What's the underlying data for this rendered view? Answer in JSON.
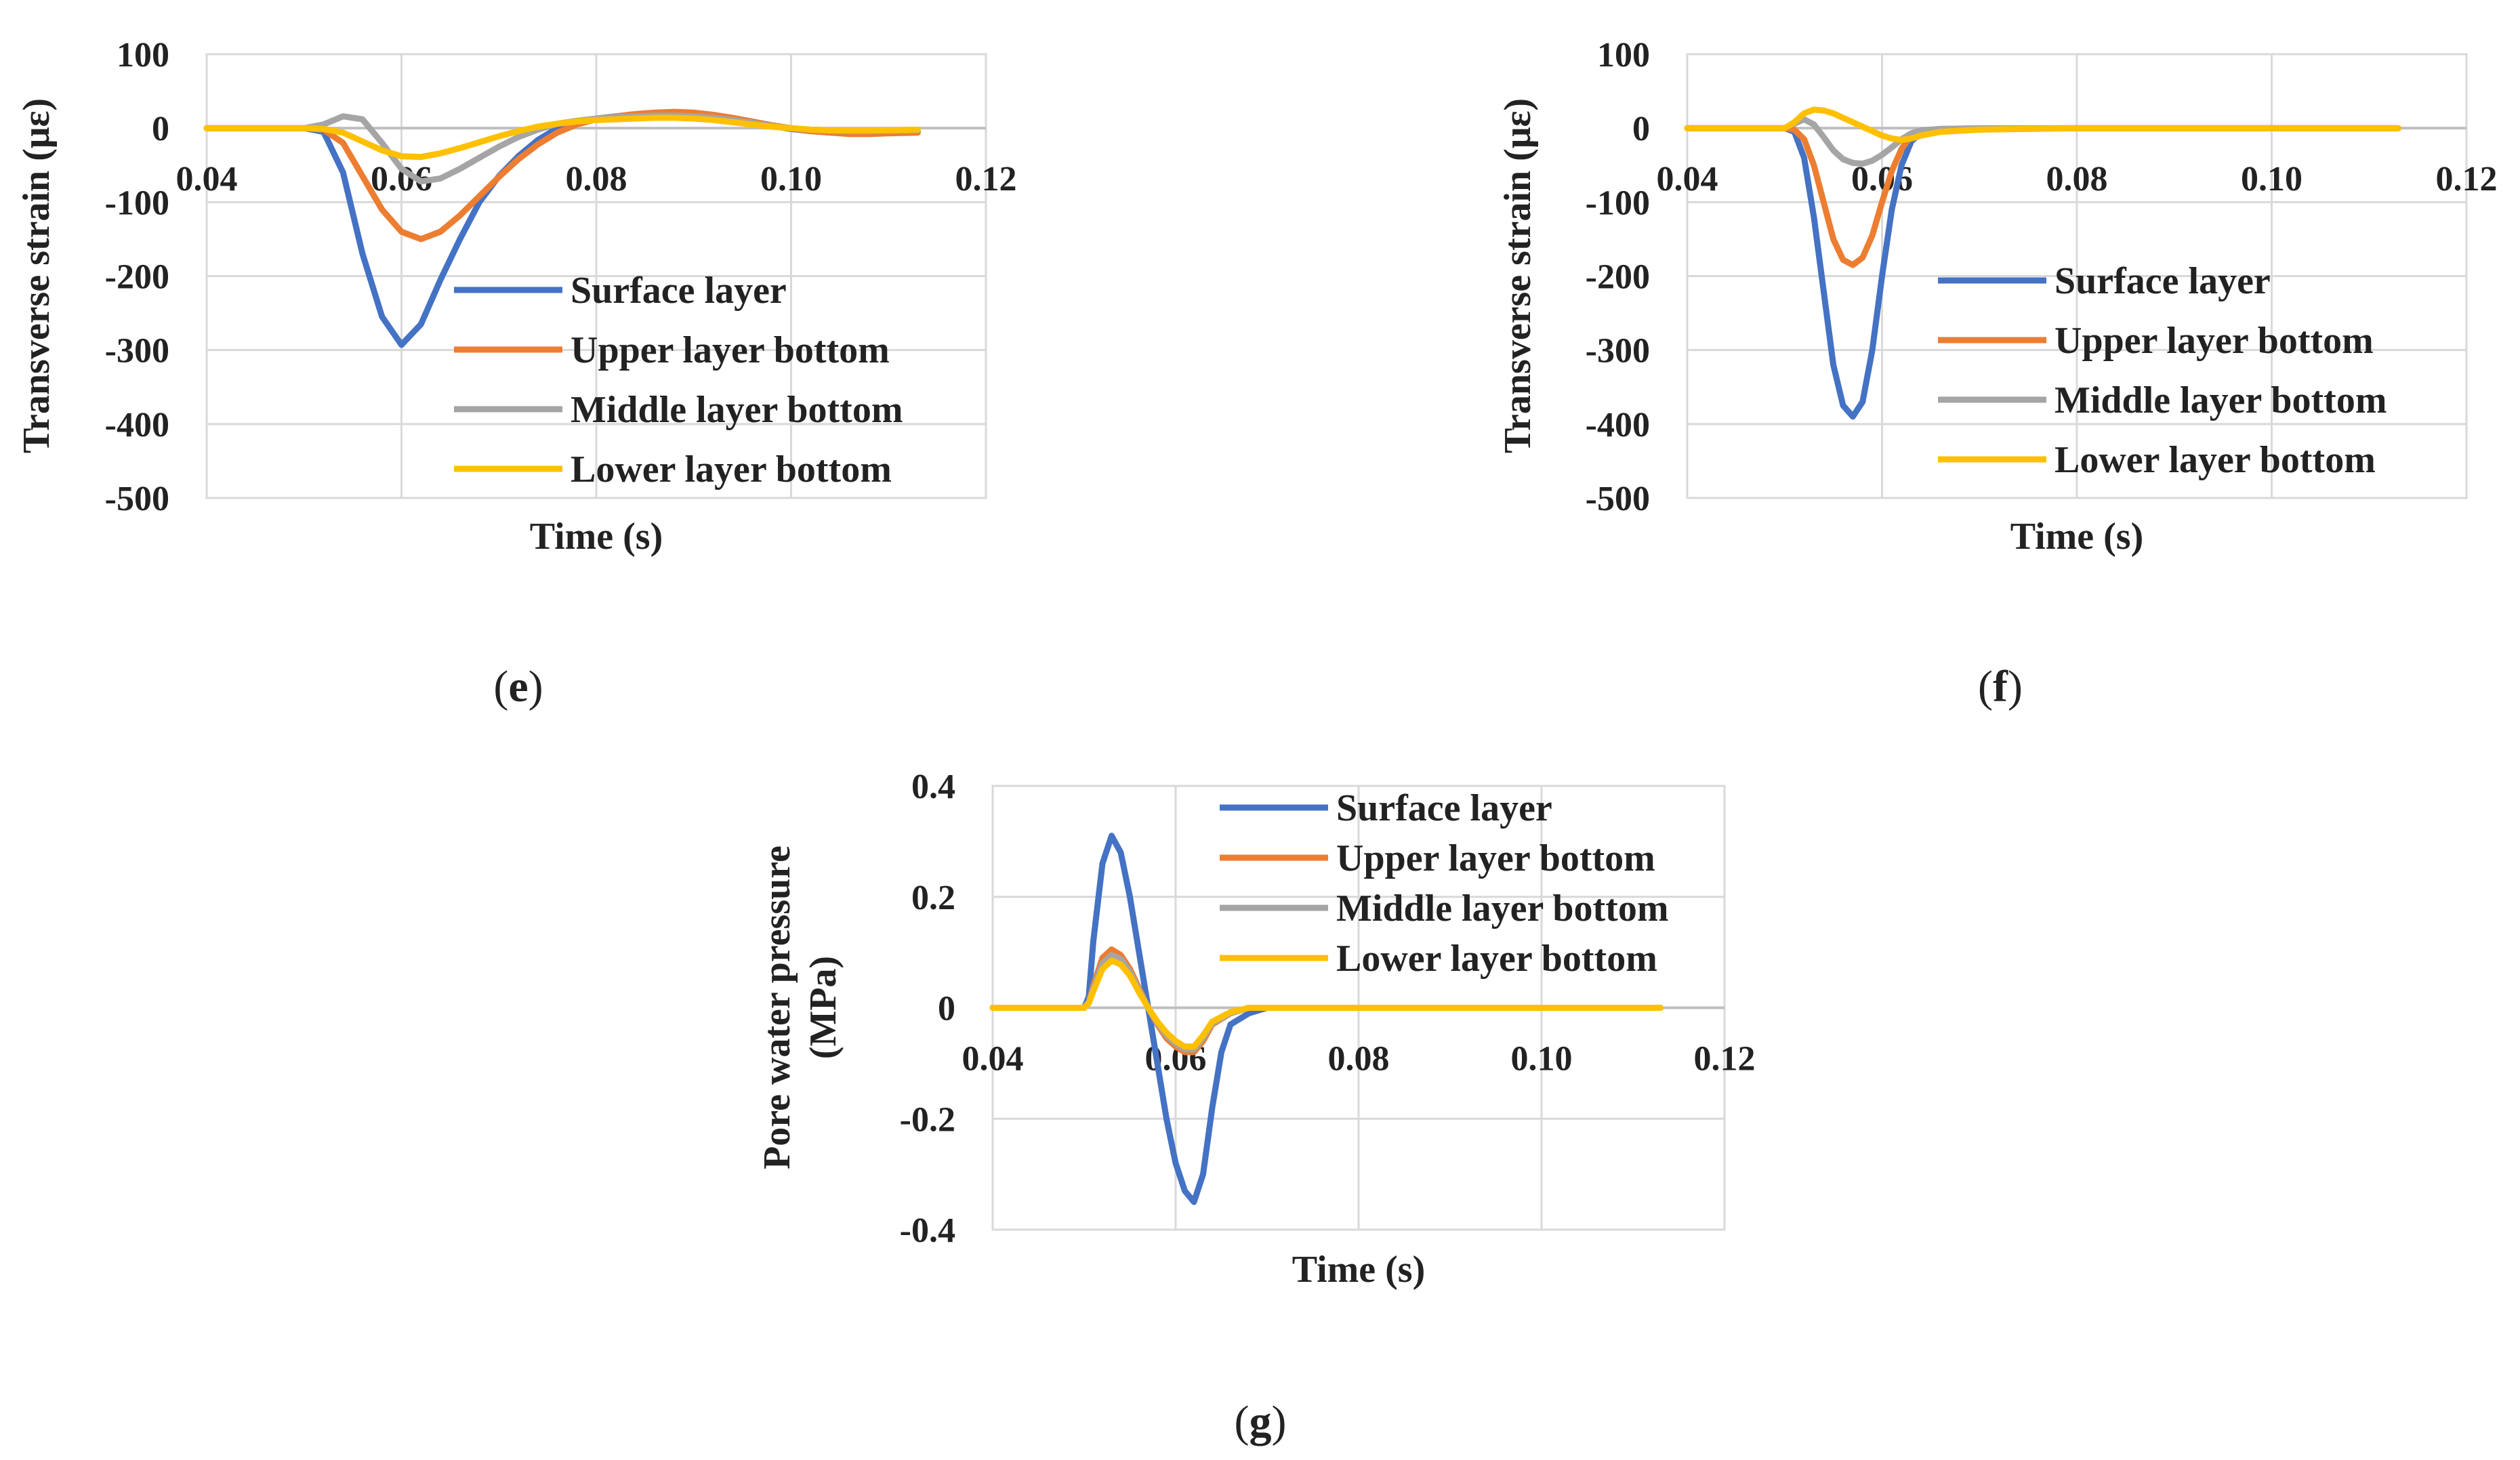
{
  "figure": {
    "panels": [
      {
        "id": "e",
        "label_open": "(",
        "label_letter": "e",
        "label_close": ")"
      },
      {
        "id": "f",
        "label_open": "(",
        "label_letter": "f",
        "label_close": ")"
      },
      {
        "id": "g",
        "label_open": "(",
        "label_letter": "g",
        "label_close": ")"
      }
    ]
  },
  "colors": {
    "surface": "#4472C4",
    "upper": "#ED7D31",
    "middle": "#A5A5A5",
    "lower": "#FFC000",
    "grid": "#D9D9D9"
  },
  "chart_data": [
    {
      "panel": "e",
      "type": "line",
      "title": "",
      "xlabel": "Time (s)",
      "ylabel": "Transverse strain (με)",
      "xlim": [
        0.04,
        0.12
      ],
      "ylim": [
        -500,
        100
      ],
      "xticks": [
        0.04,
        0.06,
        0.08,
        0.1,
        0.12
      ],
      "xtick_labels": [
        "0.04",
        "0.06",
        "0.08",
        "0.10",
        "0.12"
      ],
      "yticks": [
        100,
        0,
        -100,
        -200,
        -300,
        -400,
        -500
      ],
      "ytick_labels": [
        "100",
        "0",
        "-100",
        "-200",
        "-300",
        "-400",
        "-500"
      ],
      "x_axis_at": 0,
      "grid": true,
      "legend": "right, below zero line",
      "series": [
        {
          "name": "Surface layer",
          "color_key": "surface",
          "x": [
            0.04,
            0.05,
            0.052,
            0.054,
            0.056,
            0.058,
            0.06,
            0.062,
            0.064,
            0.066,
            0.068,
            0.07,
            0.072,
            0.074,
            0.076,
            0.078,
            0.08,
            0.082,
            0.084,
            0.086,
            0.088,
            0.09,
            0.092,
            0.094,
            0.096,
            0.098,
            0.1,
            0.102,
            0.104,
            0.106,
            0.108,
            0.11,
            0.113
          ],
          "y": [
            0,
            0,
            -5,
            -60,
            -170,
            -255,
            -293,
            -265,
            -205,
            -150,
            -100,
            -65,
            -38,
            -16,
            0,
            8,
            13,
            16,
            18,
            20,
            21,
            20,
            17,
            13,
            8,
            3,
            -1,
            -4,
            -6,
            -7,
            -7,
            -6,
            -5
          ]
        },
        {
          "name": "Upper layer bottom",
          "color_key": "upper",
          "x": [
            0.04,
            0.05,
            0.052,
            0.054,
            0.056,
            0.058,
            0.06,
            0.062,
            0.064,
            0.066,
            0.068,
            0.07,
            0.072,
            0.074,
            0.076,
            0.078,
            0.08,
            0.082,
            0.084,
            0.086,
            0.088,
            0.09,
            0.092,
            0.094,
            0.096,
            0.098,
            0.1,
            0.102,
            0.104,
            0.106,
            0.108,
            0.11,
            0.113
          ],
          "y": [
            0,
            0,
            -2,
            -20,
            -65,
            -110,
            -140,
            -150,
            -140,
            -118,
            -92,
            -66,
            -42,
            -22,
            -6,
            5,
            12,
            16,
            19,
            21,
            22,
            21,
            18,
            14,
            9,
            4,
            0,
            -4,
            -6,
            -8,
            -8,
            -7,
            -6
          ]
        },
        {
          "name": "Middle layer bottom",
          "color_key": "middle",
          "x": [
            0.04,
            0.05,
            0.052,
            0.054,
            0.056,
            0.058,
            0.06,
            0.062,
            0.064,
            0.066,
            0.068,
            0.07,
            0.072,
            0.074,
            0.076,
            0.078,
            0.08,
            0.082,
            0.084,
            0.086,
            0.088,
            0.09,
            0.092,
            0.094,
            0.096,
            0.098,
            0.1,
            0.102,
            0.104,
            0.106,
            0.108,
            0.11,
            0.113
          ],
          "y": [
            0,
            0,
            5,
            16,
            12,
            -20,
            -55,
            -72,
            -68,
            -55,
            -40,
            -25,
            -12,
            -2,
            6,
            10,
            13,
            15,
            16,
            17,
            17,
            16,
            14,
            11,
            7,
            3,
            0,
            -2,
            -3,
            -4,
            -4,
            -3,
            -3
          ]
        },
        {
          "name": "Lower layer bottom",
          "color_key": "lower",
          "x": [
            0.04,
            0.05,
            0.052,
            0.054,
            0.056,
            0.058,
            0.06,
            0.062,
            0.064,
            0.066,
            0.068,
            0.07,
            0.072,
            0.074,
            0.076,
            0.078,
            0.08,
            0.082,
            0.084,
            0.086,
            0.088,
            0.09,
            0.092,
            0.094,
            0.096,
            0.098,
            0.1,
            0.102,
            0.104,
            0.106,
            0.108,
            0.11,
            0.113
          ],
          "y": [
            0,
            0,
            -1,
            -6,
            -18,
            -30,
            -38,
            -39,
            -34,
            -27,
            -19,
            -11,
            -4,
            2,
            6,
            9,
            11,
            12,
            13,
            14,
            14,
            13,
            11,
            8,
            5,
            2,
            0,
            -2,
            -3,
            -3,
            -3,
            -3,
            -2
          ]
        }
      ]
    },
    {
      "panel": "f",
      "type": "line",
      "title": "",
      "xlabel": "Time (s)",
      "ylabel": "Transverse strain (με)",
      "xlim": [
        0.04,
        0.12
      ],
      "ylim": [
        -500,
        100
      ],
      "xticks": [
        0.04,
        0.06,
        0.08,
        0.1,
        0.12
      ],
      "xtick_labels": [
        "0.04",
        "0.06",
        "0.08",
        "0.10",
        "0.12"
      ],
      "yticks": [
        100,
        0,
        -100,
        -200,
        -300,
        -400,
        -500
      ],
      "ytick_labels": [
        "100",
        "0",
        "-100",
        "-200",
        "-300",
        "-400",
        "-500"
      ],
      "x_axis_at": 0,
      "grid": true,
      "legend": "right, below zero line",
      "series": [
        {
          "name": "Surface layer",
          "color_key": "surface",
          "x": [
            0.04,
            0.05,
            0.051,
            0.052,
            0.053,
            0.054,
            0.055,
            0.056,
            0.057,
            0.058,
            0.059,
            0.06,
            0.061,
            0.062,
            0.063,
            0.064,
            0.066,
            0.07,
            0.08,
            0.09,
            0.1,
            0.11,
            0.113
          ],
          "y": [
            0,
            0,
            -5,
            -40,
            -120,
            -220,
            -320,
            -375,
            -390,
            -370,
            -300,
            -200,
            -110,
            -50,
            -18,
            -6,
            -2,
            -1,
            0,
            0,
            0,
            0,
            0
          ]
        },
        {
          "name": "Upper layer bottom",
          "color_key": "upper",
          "x": [
            0.04,
            0.05,
            0.051,
            0.052,
            0.053,
            0.054,
            0.055,
            0.056,
            0.057,
            0.058,
            0.059,
            0.06,
            0.061,
            0.062,
            0.063,
            0.064,
            0.066,
            0.07,
            0.08,
            0.09,
            0.1,
            0.11,
            0.113
          ],
          "y": [
            0,
            0,
            -2,
            -15,
            -50,
            -100,
            -150,
            -178,
            -185,
            -175,
            -145,
            -100,
            -58,
            -28,
            -10,
            -4,
            -2,
            -1,
            0,
            0,
            0,
            0,
            0
          ]
        },
        {
          "name": "Middle layer bottom",
          "color_key": "middle",
          "x": [
            0.04,
            0.05,
            0.051,
            0.052,
            0.053,
            0.054,
            0.055,
            0.056,
            0.057,
            0.058,
            0.059,
            0.06,
            0.061,
            0.062,
            0.063,
            0.064,
            0.066,
            0.07,
            0.08,
            0.09,
            0.1,
            0.11,
            0.113
          ],
          "y": [
            0,
            0,
            6,
            12,
            5,
            -12,
            -30,
            -42,
            -47,
            -48,
            -44,
            -36,
            -26,
            -15,
            -7,
            -3,
            -1,
            0,
            0,
            0,
            0,
            0,
            0
          ]
        },
        {
          "name": "Lower layer bottom",
          "color_key": "lower",
          "x": [
            0.04,
            0.05,
            0.051,
            0.052,
            0.053,
            0.054,
            0.055,
            0.056,
            0.057,
            0.058,
            0.059,
            0.06,
            0.061,
            0.062,
            0.063,
            0.064,
            0.066,
            0.07,
            0.08,
            0.09,
            0.1,
            0.11,
            0.113
          ],
          "y": [
            0,
            0,
            8,
            20,
            25,
            24,
            20,
            14,
            8,
            2,
            -4,
            -10,
            -14,
            -16,
            -14,
            -10,
            -5,
            -2,
            0,
            0,
            0,
            0,
            0
          ]
        }
      ]
    },
    {
      "panel": "g",
      "type": "line",
      "title": "",
      "xlabel": "Time (s)",
      "ylabel": "Pore water pressure (MPa)",
      "ylabel_lines": [
        "Pore water pressure",
        "(MPa)"
      ],
      "xlim": [
        0.04,
        0.12
      ],
      "ylim": [
        -0.4,
        0.4
      ],
      "xticks": [
        0.04,
        0.06,
        0.08,
        0.1,
        0.12
      ],
      "xtick_labels": [
        "0.04",
        "0.06",
        "0.08",
        "0.10",
        "0.12"
      ],
      "yticks": [
        0.4,
        0.2,
        0,
        -0.2,
        -0.4
      ],
      "ytick_labels": [
        "0.4",
        "0.2",
        "0",
        "-0.2",
        "-0.4"
      ],
      "x_axis_at": 0,
      "grid": true,
      "legend": "top-right",
      "series": [
        {
          "name": "Surface layer",
          "color_key": "surface",
          "x": [
            0.04,
            0.05,
            0.0505,
            0.051,
            0.052,
            0.053,
            0.054,
            0.055,
            0.056,
            0.057,
            0.058,
            0.059,
            0.06,
            0.061,
            0.062,
            0.063,
            0.064,
            0.065,
            0.066,
            0.068,
            0.07,
            0.08,
            0.09,
            0.1,
            0.113
          ],
          "y": [
            0,
            0,
            0.02,
            0.12,
            0.26,
            0.31,
            0.28,
            0.2,
            0.1,
            0.0,
            -0.1,
            -0.2,
            -0.28,
            -0.33,
            -0.35,
            -0.3,
            -0.18,
            -0.08,
            -0.03,
            -0.01,
            0,
            0,
            0,
            0,
            0
          ]
        },
        {
          "name": "Upper layer bottom",
          "color_key": "upper",
          "x": [
            0.04,
            0.05,
            0.0505,
            0.051,
            0.052,
            0.053,
            0.054,
            0.055,
            0.056,
            0.057,
            0.058,
            0.059,
            0.06,
            0.061,
            0.062,
            0.063,
            0.064,
            0.066,
            0.068,
            0.07,
            0.08,
            0.09,
            0.1,
            0.113
          ],
          "y": [
            0,
            0,
            0.01,
            0.04,
            0.09,
            0.105,
            0.095,
            0.07,
            0.035,
            0.0,
            -0.03,
            -0.055,
            -0.07,
            -0.08,
            -0.08,
            -0.06,
            -0.03,
            -0.01,
            0,
            0,
            0,
            0,
            0,
            0
          ]
        },
        {
          "name": "Middle layer bottom",
          "color_key": "middle",
          "x": [
            0.04,
            0.05,
            0.0505,
            0.051,
            0.052,
            0.053,
            0.054,
            0.055,
            0.056,
            0.057,
            0.058,
            0.059,
            0.06,
            0.061,
            0.062,
            0.063,
            0.064,
            0.066,
            0.068,
            0.07,
            0.08,
            0.09,
            0.1,
            0.113
          ],
          "y": [
            0,
            0,
            0.01,
            0.035,
            0.08,
            0.095,
            0.088,
            0.065,
            0.032,
            0.0,
            -0.028,
            -0.05,
            -0.065,
            -0.075,
            -0.075,
            -0.055,
            -0.028,
            -0.01,
            0,
            0,
            0,
            0,
            0,
            0
          ]
        },
        {
          "name": "Lower layer bottom",
          "color_key": "lower",
          "x": [
            0.04,
            0.05,
            0.0505,
            0.051,
            0.052,
            0.053,
            0.054,
            0.055,
            0.056,
            0.057,
            0.058,
            0.059,
            0.06,
            0.061,
            0.062,
            0.063,
            0.064,
            0.066,
            0.068,
            0.07,
            0.08,
            0.09,
            0.1,
            0.113
          ],
          "y": [
            0,
            0,
            0.008,
            0.03,
            0.07,
            0.085,
            0.078,
            0.058,
            0.028,
            0.0,
            -0.025,
            -0.045,
            -0.06,
            -0.07,
            -0.07,
            -0.05,
            -0.025,
            -0.008,
            0,
            0,
            0,
            0,
            0,
            0
          ]
        }
      ]
    }
  ]
}
